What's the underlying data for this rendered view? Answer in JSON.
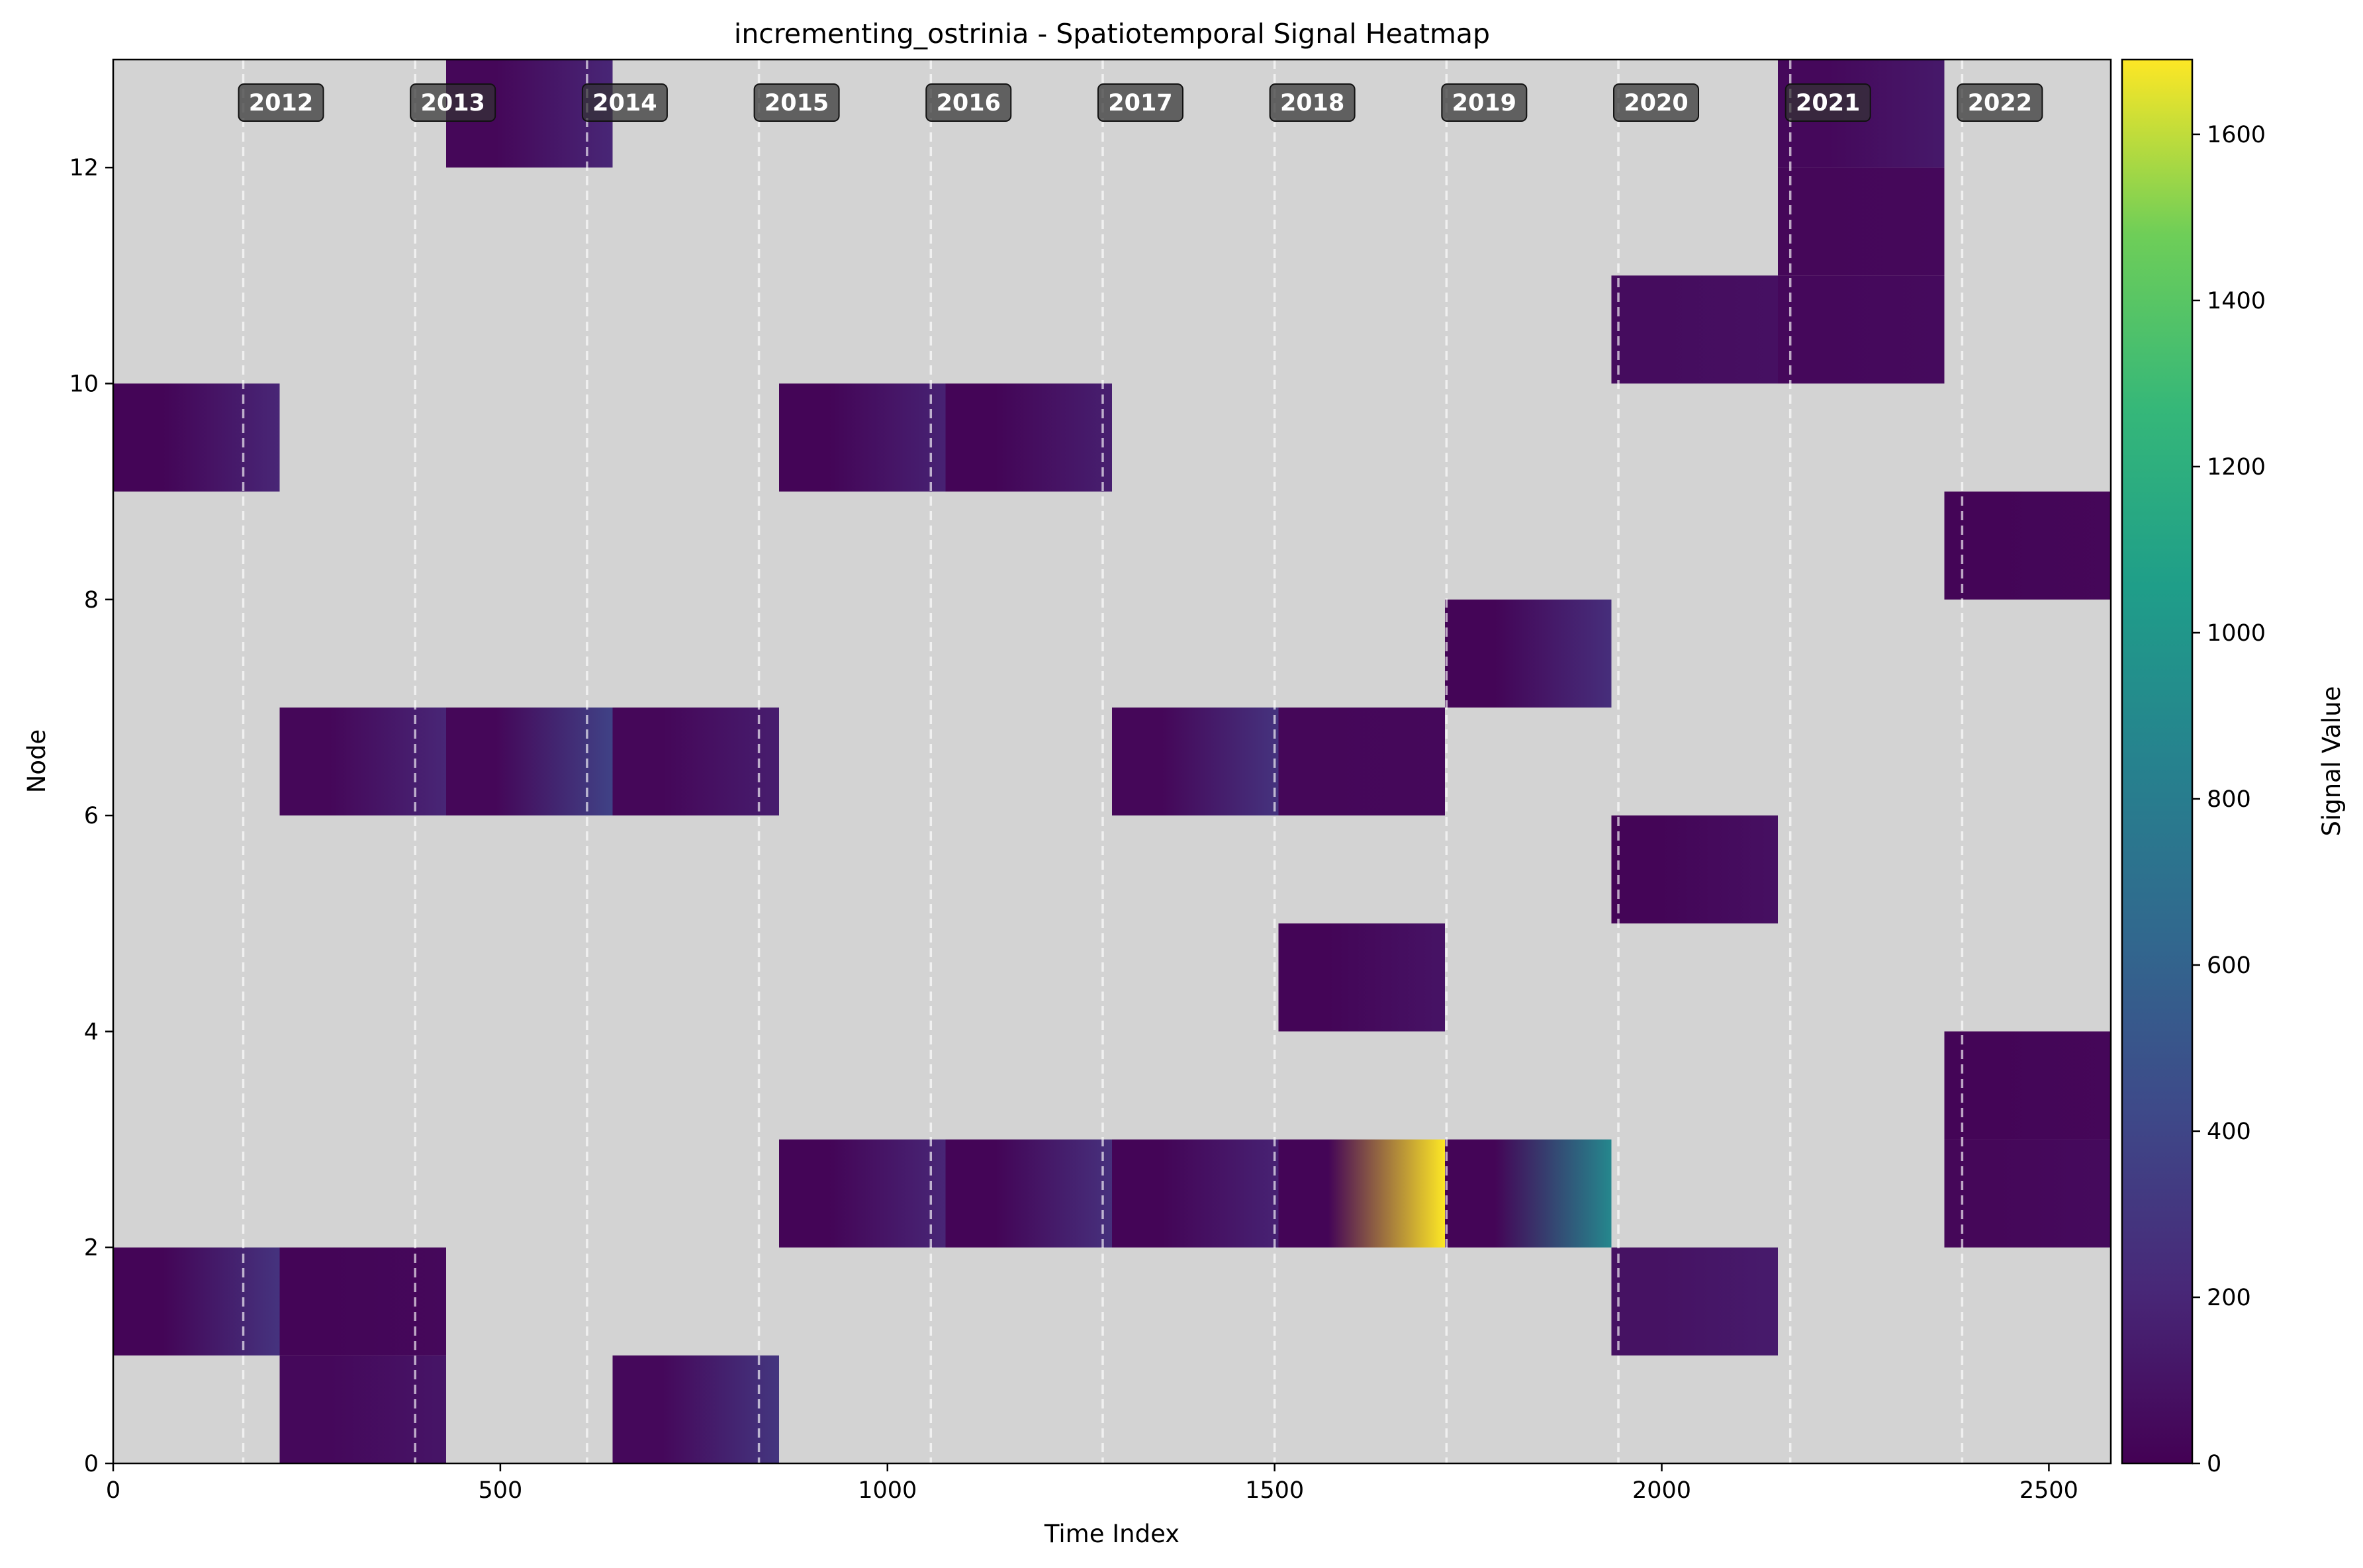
{
  "chart_data": {
    "type": "heatmap",
    "title": "incrementing_ostrinia - Spatiotemporal Signal Heatmap",
    "xlabel": "Time Index",
    "ylabel": "Node",
    "xlim": [
      0,
      2580
    ],
    "ylim": [
      0,
      13
    ],
    "x_ticks": [
      0,
      500,
      1000,
      1500,
      2000,
      2500
    ],
    "y_ticks": [
      0,
      2,
      4,
      6,
      8,
      10,
      12
    ],
    "colorbar": {
      "label": "Signal Value",
      "range": [
        0,
        1690
      ],
      "ticks": [
        0,
        200,
        400,
        600,
        800,
        1000,
        1200,
        1400,
        1600
      ],
      "colormap": "viridis"
    },
    "background_color": "#d3d3d3",
    "year_markers": [
      {
        "label": "2012",
        "x": 168
      },
      {
        "label": "2013",
        "x": 390
      },
      {
        "label": "2014",
        "x": 612
      },
      {
        "label": "2015",
        "x": 834
      },
      {
        "label": "2016",
        "x": 1056
      },
      {
        "label": "2017",
        "x": 1278
      },
      {
        "label": "2018",
        "x": 1500
      },
      {
        "label": "2019",
        "x": 1722
      },
      {
        "label": "2020",
        "x": 1944
      },
      {
        "label": "2021",
        "x": 2166
      },
      {
        "label": "2022",
        "x": 2388
      }
    ],
    "cells": [
      {
        "node": 0,
        "x_start": 215,
        "x_end": 430,
        "v_start": 40,
        "v_end": 110
      },
      {
        "node": 0,
        "x_start": 645,
        "x_end": 860,
        "v_start": 40,
        "v_end": 300
      },
      {
        "node": 1,
        "x_start": 0,
        "x_end": 215,
        "v_start": 20,
        "v_end": 280
      },
      {
        "node": 1,
        "x_start": 215,
        "x_end": 430,
        "v_start": 20,
        "v_end": 40
      },
      {
        "node": 1,
        "x_start": 1935,
        "x_end": 2150,
        "v_start": 90,
        "v_end": 140
      },
      {
        "node": 2,
        "x_start": 860,
        "x_end": 1075,
        "v_start": 20,
        "v_end": 200
      },
      {
        "node": 2,
        "x_start": 1075,
        "x_end": 1290,
        "v_start": 20,
        "v_end": 260
      },
      {
        "node": 2,
        "x_start": 1290,
        "x_end": 1505,
        "v_start": 20,
        "v_end": 180
      },
      {
        "node": 2,
        "x_start": 1505,
        "x_end": 1720,
        "v_start": 20,
        "v_end": 1690
      },
      {
        "node": 2,
        "x_start": 1720,
        "x_end": 1935,
        "v_start": 20,
        "v_end": 880
      },
      {
        "node": 2,
        "x_start": 2365,
        "x_end": 2580,
        "v_start": 30,
        "v_end": 50
      },
      {
        "node": 3,
        "x_start": 2365,
        "x_end": 2580,
        "v_start": 20,
        "v_end": 30
      },
      {
        "node": 4,
        "x_start": 1505,
        "x_end": 1720,
        "v_start": 20,
        "v_end": 100
      },
      {
        "node": 5,
        "x_start": 1935,
        "x_end": 2150,
        "v_start": 20,
        "v_end": 80
      },
      {
        "node": 6,
        "x_start": 215,
        "x_end": 430,
        "v_start": 30,
        "v_end": 200
      },
      {
        "node": 6,
        "x_start": 430,
        "x_end": 645,
        "v_start": 30,
        "v_end": 380
      },
      {
        "node": 6,
        "x_start": 645,
        "x_end": 860,
        "v_start": 30,
        "v_end": 150
      },
      {
        "node": 6,
        "x_start": 1290,
        "x_end": 1505,
        "v_start": 30,
        "v_end": 280
      },
      {
        "node": 6,
        "x_start": 1505,
        "x_end": 1720,
        "v_start": 30,
        "v_end": 40
      },
      {
        "node": 7,
        "x_start": 1720,
        "x_end": 1935,
        "v_start": 20,
        "v_end": 250
      },
      {
        "node": 8,
        "x_start": 2365,
        "x_end": 2580,
        "v_start": 20,
        "v_end": 30
      },
      {
        "node": 9,
        "x_start": 0,
        "x_end": 215,
        "v_start": 20,
        "v_end": 200
      },
      {
        "node": 9,
        "x_start": 860,
        "x_end": 1075,
        "v_start": 20,
        "v_end": 180
      },
      {
        "node": 9,
        "x_start": 1075,
        "x_end": 1290,
        "v_start": 20,
        "v_end": 160
      },
      {
        "node": 10,
        "x_start": 1935,
        "x_end": 2150,
        "v_start": 60,
        "v_end": 80
      },
      {
        "node": 10,
        "x_start": 2150,
        "x_end": 2365,
        "v_start": 40,
        "v_end": 50
      },
      {
        "node": 11,
        "x_start": 2150,
        "x_end": 2365,
        "v_start": 30,
        "v_end": 40
      },
      {
        "node": 12,
        "x_start": 430,
        "x_end": 645,
        "v_start": 30,
        "v_end": 200
      },
      {
        "node": 12,
        "x_start": 2150,
        "x_end": 2365,
        "v_start": 40,
        "v_end": 130
      }
    ]
  }
}
